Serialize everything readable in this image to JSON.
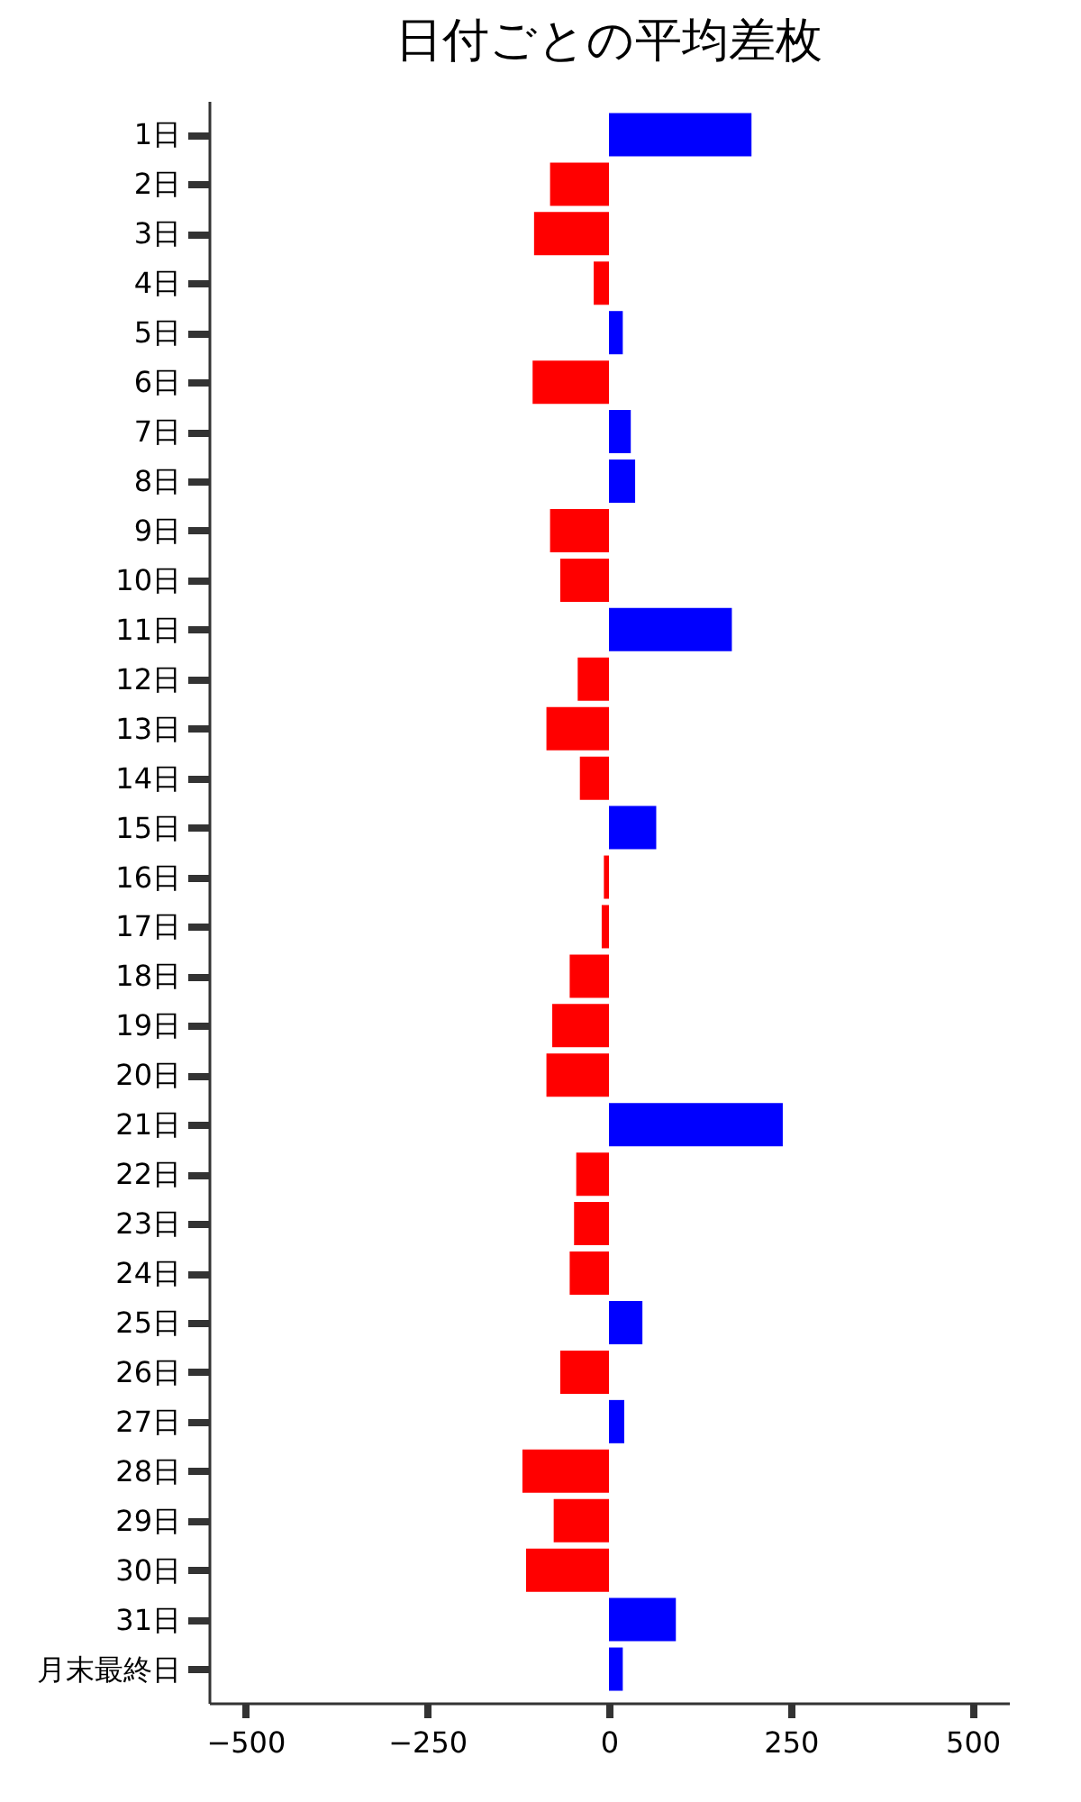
{
  "chart_data": {
    "type": "bar",
    "orientation": "horizontal",
    "title": "日付ごとの平均差枚",
    "categories": [
      "1日",
      "2日",
      "3日",
      "4日",
      "5日",
      "6日",
      "7日",
      "8日",
      "9日",
      "10日",
      "11日",
      "12日",
      "13日",
      "14日",
      "15日",
      "16日",
      "17日",
      "18日",
      "19日",
      "20日",
      "21日",
      "22日",
      "23日",
      "24日",
      "25日",
      "26日",
      "27日",
      "28日",
      "29日",
      "30日",
      "31日",
      "月末最終日"
    ],
    "values": [
      196,
      -81,
      -103,
      -21,
      19,
      -105,
      30,
      36,
      -81,
      -67,
      169,
      -43,
      -86,
      -40,
      65,
      -7,
      -10,
      -54,
      -78,
      -86,
      239,
      -45,
      -48,
      -54,
      46,
      -67,
      21,
      -119,
      -76,
      -114,
      92,
      19
    ],
    "colors": [
      "#0000ff",
      "#ff0000",
      "#ff0000",
      "#ff0000",
      "#0000ff",
      "#ff0000",
      "#0000ff",
      "#0000ff",
      "#ff0000",
      "#ff0000",
      "#0000ff",
      "#ff0000",
      "#ff0000",
      "#ff0000",
      "#0000ff",
      "#ff0000",
      "#ff0000",
      "#ff0000",
      "#ff0000",
      "#ff0000",
      "#0000ff",
      "#ff0000",
      "#ff0000",
      "#ff0000",
      "#0000ff",
      "#ff0000",
      "#0000ff",
      "#ff0000",
      "#ff0000",
      "#ff0000",
      "#0000ff",
      "#0000ff"
    ],
    "xlim": [
      -550,
      550
    ],
    "xticks": [
      -500,
      -250,
      0,
      250,
      500
    ],
    "grid": false
  }
}
